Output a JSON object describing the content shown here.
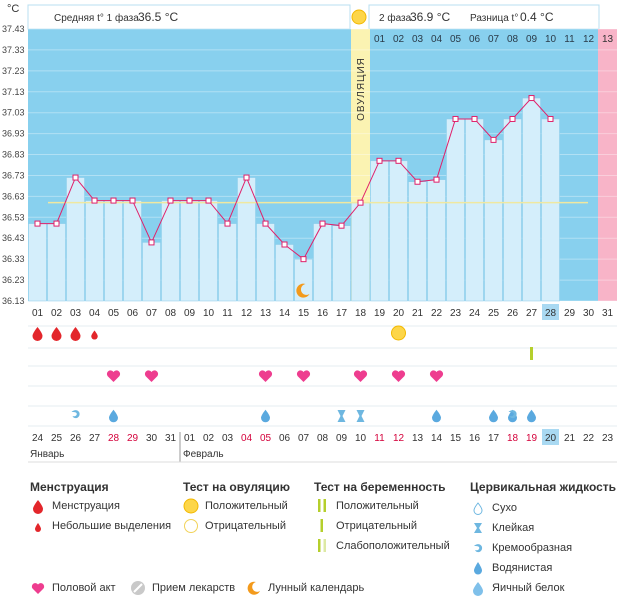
{
  "header": {
    "unit": "°C",
    "phase1_label": "Средняя t° 1 фаза",
    "phase1_value": "36.5 °C",
    "phase2_label": "2 фаза",
    "phase2_value": "36.9 °C",
    "diff_label": "Разница t°",
    "diff_value": "0.4 °C",
    "ovulation_label": "ОВУЛЯЦИЯ"
  },
  "colors": {
    "phase_bg": "#88d0ee",
    "bar_fill": "#d4eefb",
    "line": "#e0206a",
    "coverline": "#f0e8a0",
    "ovulation_bg": "#fbf3b2",
    "pink_col": "#f8b4c8",
    "today_box": "#a9d9f2"
  },
  "chart_data": {
    "type": "line",
    "title": "",
    "ylabel": "°C",
    "ylim": [
      36.13,
      37.43
    ],
    "yticks": [
      "37.43",
      "37.33",
      "37.23",
      "37.13",
      "37.03",
      "36.93",
      "36.83",
      "36.73",
      "36.63",
      "36.53",
      "36.43",
      "36.33",
      "36.23",
      "36.13"
    ],
    "coverline": 36.6,
    "cycle_days": [
      "01",
      "02",
      "03",
      "04",
      "05",
      "06",
      "07",
      "08",
      "09",
      "10",
      "11",
      "12",
      "13",
      "14",
      "15",
      "16",
      "17",
      "18",
      "19",
      "20",
      "21",
      "22",
      "23",
      "24",
      "25",
      "26",
      "27",
      "28",
      "29",
      "30",
      "31"
    ],
    "calendar_days": [
      "24",
      "25",
      "26",
      "27",
      "28",
      "29",
      "30",
      "31",
      "01",
      "02",
      "03",
      "04",
      "05",
      "06",
      "07",
      "08",
      "09",
      "10",
      "11",
      "12",
      "13",
      "14",
      "15",
      "16",
      "17",
      "18",
      "19",
      "20",
      "21",
      "22",
      "23"
    ],
    "red_calendar_days": [
      "28",
      "29",
      "04",
      "05",
      "11",
      "12",
      "18",
      "19"
    ],
    "months": [
      "Январь",
      "Февраль"
    ],
    "phase2_day_numbers": [
      "01",
      "02",
      "03",
      "04",
      "05",
      "06",
      "07",
      "08",
      "09",
      "10",
      "11",
      "12",
      "13"
    ],
    "temperatures": [
      36.5,
      36.5,
      36.72,
      36.61,
      36.61,
      36.61,
      36.41,
      36.61,
      36.61,
      36.61,
      36.5,
      36.72,
      36.5,
      36.4,
      36.33,
      36.5,
      36.49,
      36.6,
      36.8,
      36.8,
      36.7,
      36.71,
      37.0,
      37.0,
      36.9,
      37.0,
      37.1,
      37.0
    ],
    "ovulation_day": "18",
    "today_day": "28",
    "menstruation": {
      "heavy": [
        "01",
        "02",
        "03"
      ],
      "light": [
        "04"
      ]
    },
    "ovulation_test_positive": [
      "20"
    ],
    "pregnancy_test_positive": [
      "27"
    ],
    "intercourse": [
      "05",
      "07",
      "13",
      "15",
      "18",
      "20",
      "22"
    ],
    "moon": [
      "15"
    ],
    "fluid_creamy": [
      "12",
      "03",
      "26"
    ],
    "fluid_watery": [
      "13",
      "05",
      "22",
      "25",
      "26",
      "27"
    ],
    "fluid_sticky": [
      "17",
      "18"
    ]
  },
  "legend": {
    "menstruation": {
      "title": "Менструация",
      "items": [
        "Менструация",
        "Небольшие выделения"
      ]
    },
    "ovulation_test": {
      "title": "Тест на овуляцию",
      "items": [
        "Положительный",
        "Отрицательный"
      ]
    },
    "pregnancy_test": {
      "title": "Тест на беременность",
      "items": [
        "Положительный",
        "Отрицательный",
        "Слабоположительный"
      ]
    },
    "cervical": {
      "title": "Цервикальная жидкость",
      "items": [
        "Сухо",
        "Клейкая",
        "Кремообразная",
        "Водянистая",
        "Яичный белок"
      ]
    },
    "bottom": [
      "Половой акт",
      "Прием лекарств",
      "Лунный календарь"
    ]
  }
}
